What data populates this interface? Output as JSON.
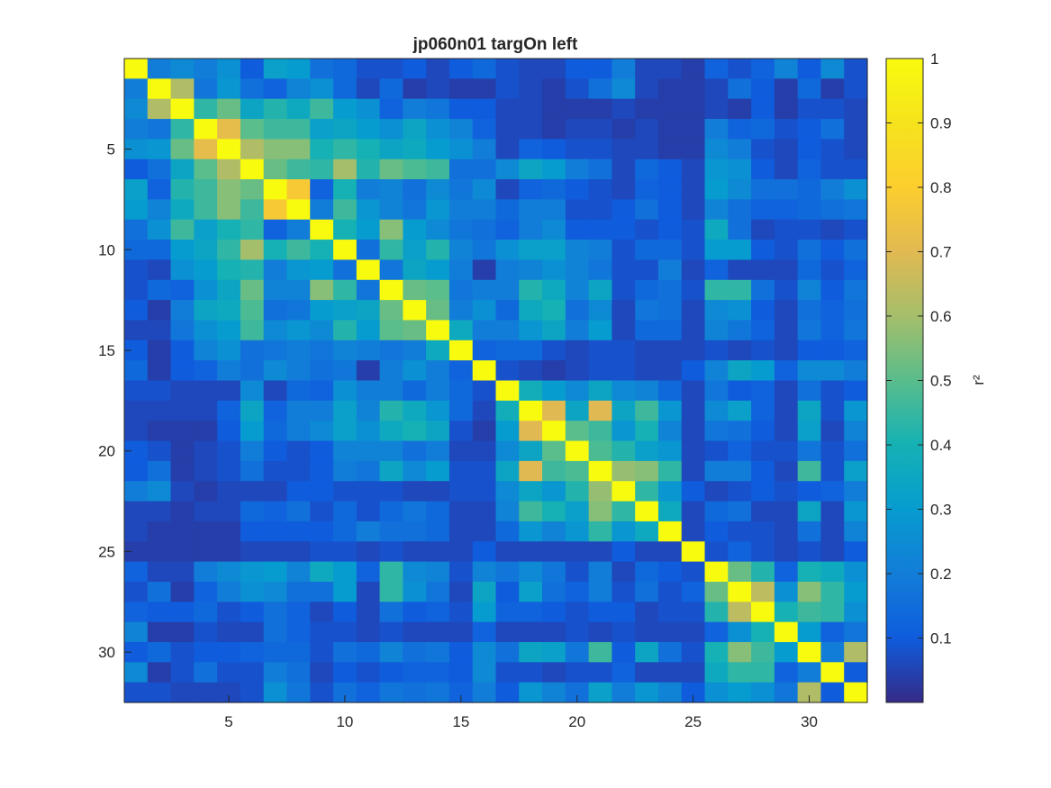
{
  "chart_data": {
    "type": "heatmap",
    "title": "jp060n01 targOn left",
    "colorbar": {
      "label": "r²",
      "ticks": [
        0.1,
        0.2,
        0.3,
        0.4,
        0.5,
        0.6,
        0.7,
        0.8,
        0.9,
        1
      ],
      "tick_labels": [
        "0.1",
        "0.2",
        "0.3",
        "0.4",
        "0.5",
        "0.6",
        "0.7",
        "0.8",
        "0.9",
        "1"
      ],
      "range": [
        0,
        1
      ],
      "colormap": "parula"
    },
    "x_ticks": [
      5,
      10,
      15,
      20,
      25,
      30
    ],
    "y_ticks": [
      5,
      10,
      15,
      20,
      25,
      30
    ],
    "n": 32,
    "matrix": [
      [
        1.0,
        0.2,
        0.24,
        0.2,
        0.26,
        0.1,
        0.32,
        0.3,
        0.16,
        0.14,
        0.08,
        0.08,
        0.1,
        0.06,
        0.1,
        0.14,
        0.08,
        0.06,
        0.06,
        0.1,
        0.1,
        0.2,
        0.06,
        0.06,
        0.04,
        0.12,
        0.08,
        0.12,
        0.22,
        0.1,
        0.24,
        0.08
      ],
      [
        0.2,
        1.0,
        0.62,
        0.18,
        0.28,
        0.16,
        0.12,
        0.22,
        0.26,
        0.14,
        0.06,
        0.14,
        0.04,
        0.06,
        0.04,
        0.04,
        0.08,
        0.06,
        0.04,
        0.08,
        0.16,
        0.24,
        0.06,
        0.04,
        0.04,
        0.06,
        0.16,
        0.1,
        0.04,
        0.14,
        0.04,
        0.08
      ],
      [
        0.24,
        0.62,
        1.0,
        0.44,
        0.52,
        0.34,
        0.42,
        0.36,
        0.46,
        0.3,
        0.26,
        0.12,
        0.2,
        0.18,
        0.1,
        0.1,
        0.06,
        0.06,
        0.04,
        0.04,
        0.04,
        0.06,
        0.04,
        0.04,
        0.04,
        0.06,
        0.04,
        0.1,
        0.04,
        0.08,
        0.08,
        0.06
      ],
      [
        0.2,
        0.18,
        0.44,
        1.0,
        0.72,
        0.5,
        0.46,
        0.46,
        0.32,
        0.34,
        0.3,
        0.26,
        0.34,
        0.26,
        0.22,
        0.12,
        0.06,
        0.06,
        0.04,
        0.06,
        0.06,
        0.04,
        0.06,
        0.04,
        0.04,
        0.2,
        0.12,
        0.14,
        0.08,
        0.1,
        0.16,
        0.06
      ],
      [
        0.26,
        0.28,
        0.52,
        0.72,
        1.0,
        0.62,
        0.56,
        0.56,
        0.4,
        0.44,
        0.4,
        0.34,
        0.36,
        0.3,
        0.26,
        0.2,
        0.06,
        0.12,
        0.1,
        0.08,
        0.08,
        0.06,
        0.06,
        0.04,
        0.04,
        0.24,
        0.2,
        0.08,
        0.06,
        0.1,
        0.08,
        0.06
      ],
      [
        0.1,
        0.16,
        0.34,
        0.5,
        0.62,
        1.0,
        0.52,
        0.46,
        0.44,
        0.6,
        0.42,
        0.52,
        0.48,
        0.46,
        0.16,
        0.16,
        0.24,
        0.34,
        0.3,
        0.2,
        0.16,
        0.06,
        0.14,
        0.1,
        0.06,
        0.28,
        0.26,
        0.1,
        0.06,
        0.12,
        0.08,
        0.08
      ],
      [
        0.32,
        0.12,
        0.42,
        0.46,
        0.56,
        0.52,
        1.0,
        0.78,
        0.12,
        0.4,
        0.2,
        0.22,
        0.16,
        0.24,
        0.18,
        0.24,
        0.06,
        0.12,
        0.14,
        0.1,
        0.08,
        0.06,
        0.12,
        0.1,
        0.06,
        0.3,
        0.24,
        0.16,
        0.16,
        0.14,
        0.2,
        0.26
      ],
      [
        0.3,
        0.22,
        0.36,
        0.46,
        0.56,
        0.46,
        0.78,
        1.0,
        0.2,
        0.46,
        0.28,
        0.22,
        0.18,
        0.28,
        0.2,
        0.2,
        0.14,
        0.2,
        0.2,
        0.08,
        0.08,
        0.1,
        0.16,
        0.1,
        0.06,
        0.22,
        0.16,
        0.12,
        0.12,
        0.14,
        0.16,
        0.18
      ],
      [
        0.16,
        0.26,
        0.46,
        0.32,
        0.4,
        0.44,
        0.12,
        0.2,
        1.0,
        0.4,
        0.3,
        0.56,
        0.3,
        0.24,
        0.18,
        0.16,
        0.12,
        0.2,
        0.24,
        0.1,
        0.1,
        0.1,
        0.08,
        0.1,
        0.08,
        0.36,
        0.16,
        0.06,
        0.08,
        0.08,
        0.06,
        0.08
      ],
      [
        0.14,
        0.14,
        0.3,
        0.34,
        0.44,
        0.6,
        0.4,
        0.46,
        0.4,
        1.0,
        0.16,
        0.44,
        0.32,
        0.42,
        0.22,
        0.18,
        0.26,
        0.32,
        0.32,
        0.22,
        0.2,
        0.08,
        0.14,
        0.14,
        0.08,
        0.3,
        0.3,
        0.1,
        0.08,
        0.16,
        0.1,
        0.16
      ],
      [
        0.08,
        0.06,
        0.26,
        0.3,
        0.4,
        0.42,
        0.2,
        0.28,
        0.3,
        0.16,
        1.0,
        0.18,
        0.34,
        0.3,
        0.2,
        0.04,
        0.2,
        0.22,
        0.26,
        0.22,
        0.18,
        0.08,
        0.08,
        0.2,
        0.06,
        0.12,
        0.06,
        0.06,
        0.06,
        0.14,
        0.08,
        0.12
      ],
      [
        0.08,
        0.14,
        0.12,
        0.26,
        0.34,
        0.52,
        0.22,
        0.22,
        0.56,
        0.44,
        0.18,
        1.0,
        0.52,
        0.5,
        0.18,
        0.2,
        0.2,
        0.42,
        0.36,
        0.22,
        0.34,
        0.08,
        0.14,
        0.16,
        0.08,
        0.44,
        0.44,
        0.16,
        0.08,
        0.22,
        0.1,
        0.18
      ],
      [
        0.1,
        0.04,
        0.2,
        0.34,
        0.36,
        0.48,
        0.16,
        0.18,
        0.3,
        0.32,
        0.34,
        0.52,
        1.0,
        0.52,
        0.2,
        0.26,
        0.14,
        0.36,
        0.4,
        0.16,
        0.24,
        0.06,
        0.18,
        0.16,
        0.06,
        0.24,
        0.26,
        0.1,
        0.06,
        0.16,
        0.12,
        0.16
      ],
      [
        0.06,
        0.06,
        0.18,
        0.26,
        0.3,
        0.46,
        0.24,
        0.28,
        0.24,
        0.42,
        0.3,
        0.5,
        0.52,
        1.0,
        0.36,
        0.2,
        0.2,
        0.28,
        0.34,
        0.2,
        0.3,
        0.06,
        0.14,
        0.14,
        0.06,
        0.22,
        0.18,
        0.12,
        0.06,
        0.18,
        0.12,
        0.18
      ],
      [
        0.1,
        0.04,
        0.1,
        0.22,
        0.26,
        0.16,
        0.18,
        0.2,
        0.18,
        0.22,
        0.2,
        0.18,
        0.2,
        0.36,
        1.0,
        0.12,
        0.14,
        0.14,
        0.08,
        0.06,
        0.08,
        0.08,
        0.06,
        0.06,
        0.06,
        0.08,
        0.06,
        0.08,
        0.06,
        0.1,
        0.1,
        0.12
      ],
      [
        0.14,
        0.04,
        0.1,
        0.12,
        0.2,
        0.16,
        0.24,
        0.2,
        0.16,
        0.18,
        0.04,
        0.2,
        0.26,
        0.2,
        0.12,
        1.0,
        0.08,
        0.06,
        0.04,
        0.06,
        0.08,
        0.08,
        0.06,
        0.06,
        0.1,
        0.22,
        0.34,
        0.3,
        0.12,
        0.24,
        0.24,
        0.2
      ],
      [
        0.08,
        0.08,
        0.06,
        0.06,
        0.06,
        0.24,
        0.06,
        0.14,
        0.12,
        0.26,
        0.2,
        0.2,
        0.14,
        0.2,
        0.14,
        0.08,
        1.0,
        0.38,
        0.3,
        0.24,
        0.34,
        0.24,
        0.22,
        0.14,
        0.06,
        0.18,
        0.1,
        0.12,
        0.06,
        0.16,
        0.08,
        0.1
      ],
      [
        0.06,
        0.06,
        0.06,
        0.06,
        0.12,
        0.34,
        0.12,
        0.2,
        0.2,
        0.32,
        0.22,
        0.42,
        0.36,
        0.28,
        0.14,
        0.06,
        0.38,
        1.0,
        0.7,
        0.34,
        0.7,
        0.34,
        0.46,
        0.28,
        0.06,
        0.24,
        0.32,
        0.12,
        0.06,
        0.34,
        0.08,
        0.28
      ],
      [
        0.06,
        0.04,
        0.04,
        0.04,
        0.1,
        0.3,
        0.14,
        0.2,
        0.24,
        0.32,
        0.26,
        0.36,
        0.4,
        0.34,
        0.08,
        0.04,
        0.3,
        0.7,
        1.0,
        0.5,
        0.46,
        0.28,
        0.4,
        0.22,
        0.06,
        0.18,
        0.16,
        0.1,
        0.06,
        0.32,
        0.06,
        0.22
      ],
      [
        0.1,
        0.08,
        0.04,
        0.06,
        0.08,
        0.2,
        0.1,
        0.08,
        0.1,
        0.22,
        0.22,
        0.22,
        0.16,
        0.2,
        0.06,
        0.06,
        0.24,
        0.34,
        0.5,
        1.0,
        0.48,
        0.42,
        0.32,
        0.28,
        0.06,
        0.08,
        0.12,
        0.08,
        0.08,
        0.18,
        0.08,
        0.16
      ],
      [
        0.1,
        0.16,
        0.04,
        0.06,
        0.08,
        0.16,
        0.08,
        0.08,
        0.1,
        0.2,
        0.18,
        0.34,
        0.24,
        0.3,
        0.08,
        0.08,
        0.34,
        0.7,
        0.46,
        0.48,
        1.0,
        0.58,
        0.56,
        0.44,
        0.06,
        0.2,
        0.2,
        0.1,
        0.06,
        0.46,
        0.08,
        0.32
      ],
      [
        0.2,
        0.24,
        0.06,
        0.04,
        0.06,
        0.06,
        0.06,
        0.1,
        0.1,
        0.08,
        0.08,
        0.08,
        0.06,
        0.06,
        0.08,
        0.08,
        0.24,
        0.34,
        0.28,
        0.42,
        0.58,
        1.0,
        0.44,
        0.28,
        0.1,
        0.06,
        0.08,
        0.1,
        0.08,
        0.1,
        0.12,
        0.2
      ],
      [
        0.06,
        0.06,
        0.04,
        0.06,
        0.06,
        0.14,
        0.12,
        0.16,
        0.08,
        0.14,
        0.08,
        0.14,
        0.18,
        0.14,
        0.06,
        0.06,
        0.22,
        0.46,
        0.4,
        0.32,
        0.56,
        0.44,
        1.0,
        0.36,
        0.06,
        0.14,
        0.16,
        0.06,
        0.06,
        0.34,
        0.06,
        0.28
      ],
      [
        0.06,
        0.04,
        0.04,
        0.04,
        0.04,
        0.1,
        0.1,
        0.1,
        0.1,
        0.14,
        0.2,
        0.16,
        0.16,
        0.14,
        0.06,
        0.06,
        0.14,
        0.28,
        0.22,
        0.28,
        0.44,
        0.28,
        0.36,
        1.0,
        0.06,
        0.1,
        0.08,
        0.08,
        0.06,
        0.16,
        0.06,
        0.22
      ],
      [
        0.04,
        0.04,
        0.04,
        0.04,
        0.04,
        0.06,
        0.06,
        0.06,
        0.08,
        0.08,
        0.06,
        0.08,
        0.06,
        0.06,
        0.06,
        0.1,
        0.06,
        0.06,
        0.06,
        0.06,
        0.06,
        0.1,
        0.06,
        0.06,
        1.0,
        0.08,
        0.12,
        0.08,
        0.06,
        0.08,
        0.06,
        0.1
      ],
      [
        0.12,
        0.06,
        0.06,
        0.2,
        0.24,
        0.28,
        0.3,
        0.22,
        0.36,
        0.3,
        0.12,
        0.44,
        0.24,
        0.22,
        0.08,
        0.22,
        0.18,
        0.24,
        0.18,
        0.08,
        0.2,
        0.06,
        0.14,
        0.1,
        0.08,
        1.0,
        0.52,
        0.42,
        0.12,
        0.4,
        0.36,
        0.26
      ],
      [
        0.08,
        0.16,
        0.04,
        0.12,
        0.2,
        0.26,
        0.24,
        0.16,
        0.16,
        0.3,
        0.06,
        0.44,
        0.26,
        0.18,
        0.06,
        0.34,
        0.1,
        0.32,
        0.16,
        0.12,
        0.2,
        0.08,
        0.16,
        0.08,
        0.12,
        0.52,
        1.0,
        0.64,
        0.26,
        0.56,
        0.44,
        0.3
      ],
      [
        0.12,
        0.1,
        0.1,
        0.14,
        0.08,
        0.1,
        0.16,
        0.12,
        0.06,
        0.1,
        0.06,
        0.16,
        0.1,
        0.12,
        0.08,
        0.3,
        0.12,
        0.12,
        0.1,
        0.08,
        0.1,
        0.1,
        0.06,
        0.08,
        0.08,
        0.42,
        0.64,
        1.0,
        0.4,
        0.46,
        0.44,
        0.26
      ],
      [
        0.22,
        0.04,
        0.04,
        0.08,
        0.06,
        0.06,
        0.16,
        0.12,
        0.08,
        0.08,
        0.06,
        0.08,
        0.06,
        0.06,
        0.06,
        0.12,
        0.06,
        0.06,
        0.06,
        0.08,
        0.06,
        0.08,
        0.06,
        0.06,
        0.06,
        0.12,
        0.26,
        0.4,
        1.0,
        0.3,
        0.12,
        0.18
      ],
      [
        0.1,
        0.14,
        0.08,
        0.1,
        0.1,
        0.12,
        0.14,
        0.14,
        0.08,
        0.16,
        0.14,
        0.22,
        0.16,
        0.18,
        0.1,
        0.24,
        0.16,
        0.34,
        0.32,
        0.18,
        0.46,
        0.1,
        0.34,
        0.16,
        0.08,
        0.4,
        0.56,
        0.46,
        0.3,
        1.0,
        0.2,
        0.62
      ],
      [
        0.24,
        0.04,
        0.08,
        0.16,
        0.08,
        0.08,
        0.2,
        0.16,
        0.06,
        0.1,
        0.08,
        0.1,
        0.12,
        0.12,
        0.1,
        0.24,
        0.08,
        0.08,
        0.06,
        0.08,
        0.08,
        0.12,
        0.06,
        0.06,
        0.06,
        0.36,
        0.44,
        0.44,
        0.12,
        0.2,
        1.0,
        0.1
      ],
      [
        0.08,
        0.08,
        0.06,
        0.06,
        0.06,
        0.08,
        0.26,
        0.18,
        0.08,
        0.16,
        0.12,
        0.18,
        0.16,
        0.18,
        0.12,
        0.2,
        0.1,
        0.28,
        0.22,
        0.16,
        0.32,
        0.2,
        0.28,
        0.22,
        0.1,
        0.26,
        0.3,
        0.26,
        0.18,
        0.62,
        0.1,
        1.0
      ]
    ]
  }
}
